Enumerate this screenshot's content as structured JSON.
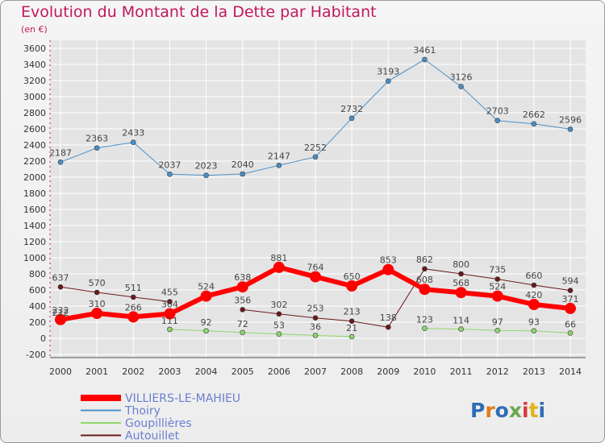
{
  "title": "Evolution du Montant de la Dette par Habitant",
  "subtitle": "(en €)",
  "logo": "Proxiti",
  "colors": {
    "title": "#c2185b",
    "axis": "#333333",
    "grid": "#ffffff"
  },
  "chart_data": {
    "type": "line",
    "title": "Evolution du Montant de la Dette par Habitant",
    "subtitle": "(en €)",
    "xlabel": "",
    "ylabel": "",
    "x": [
      "2000",
      "2001",
      "2002",
      "2003",
      "2004",
      "2005",
      "2006",
      "2007",
      "2008",
      "2009",
      "2010",
      "2011",
      "2012",
      "2013",
      "2014"
    ],
    "yticks": [
      -200,
      0,
      200,
      400,
      600,
      800,
      1000,
      1200,
      1400,
      1600,
      1800,
      2000,
      2200,
      2400,
      2600,
      2800,
      3000,
      3200,
      3400,
      3600
    ],
    "ylim": [
      -200,
      3600
    ],
    "grid": true,
    "legend_position": "bottom-left",
    "series": [
      {
        "name": "VILLIERS-LE-MAHIEU",
        "color": "#ff0000",
        "values": [
          232,
          310,
          266,
          304,
          524,
          638,
          881,
          764,
          650,
          853,
          608,
          568,
          524,
          420,
          371
        ]
      },
      {
        "name": "Thoiry",
        "color": "#4a90c8",
        "values": [
          2187,
          2363,
          2433,
          2037,
          2023,
          2040,
          2147,
          2252,
          2732,
          3193,
          3461,
          3126,
          2703,
          2662,
          2596
        ]
      },
      {
        "name": "Goupillières",
        "color": "#8fd66c",
        "values": [
          212,
          null,
          null,
          111,
          92,
          72,
          53,
          36,
          21,
          null,
          123,
          114,
          97,
          93,
          66
        ]
      },
      {
        "name": "Autouillet",
        "color": "#6b1a1a",
        "values": [
          637,
          570,
          511,
          455,
          null,
          356,
          302,
          253,
          213,
          138,
          862,
          800,
          735,
          660,
          594
        ]
      }
    ]
  }
}
